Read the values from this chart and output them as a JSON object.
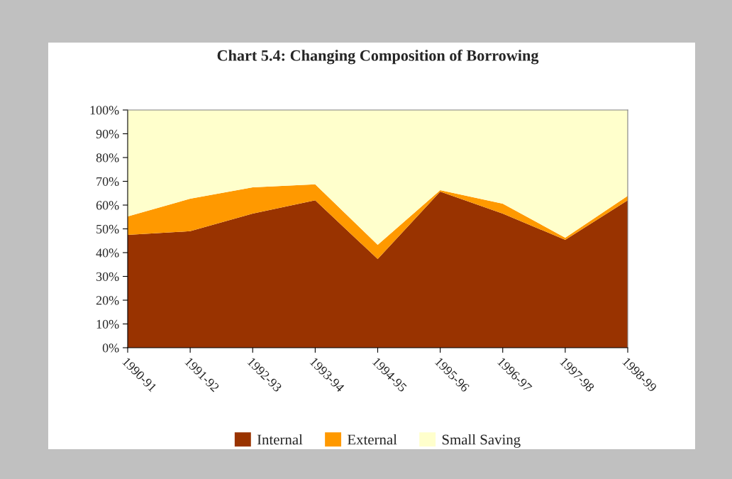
{
  "chart_data": {
    "type": "area",
    "title": "Chart 5.4: Changing Composition of Borrowing",
    "stacked": true,
    "categories": [
      "1990-91",
      "1991-92",
      "1992-93",
      "1993-94",
      "1994-95",
      "1995-96",
      "1996-97",
      "1997-98",
      "1998-99"
    ],
    "series": [
      {
        "name": "Internal",
        "color": "#993300",
        "values": [
          47.5,
          49,
          56.4,
          62,
          37.3,
          65.7,
          56.4,
          45.4,
          62
        ]
      },
      {
        "name": "External",
        "color": "#ff9900",
        "values": [
          7.7,
          13.7,
          11.1,
          6.7,
          6,
          0.6,
          4.2,
          0.9,
          1.9
        ]
      },
      {
        "name": "Small Saving",
        "color": "#ffffcc",
        "values": [
          44.8,
          37.3,
          32.5,
          31.3,
          56.7,
          33.7,
          39.4,
          53.7,
          36.1
        ]
      }
    ],
    "ylim": [
      0,
      100
    ],
    "yticks": [
      {
        "value": 0,
        "label": "0%"
      },
      {
        "value": 10,
        "label": "10%"
      },
      {
        "value": 20,
        "label": "20%"
      },
      {
        "value": 30,
        "label": "30%"
      },
      {
        "value": 40,
        "label": "40%"
      },
      {
        "value": 50,
        "label": "50%"
      },
      {
        "value": 60,
        "label": "60%"
      },
      {
        "value": 70,
        "label": "70%"
      },
      {
        "value": 80,
        "label": "80%"
      },
      {
        "value": 90,
        "label": "90%"
      },
      {
        "value": 100,
        "label": "100%"
      }
    ],
    "grid": false,
    "legend": "bottom"
  }
}
